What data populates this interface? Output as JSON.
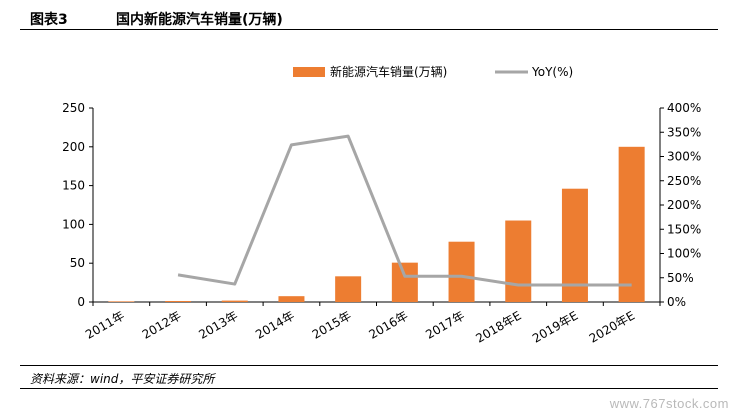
{
  "header": {
    "figure_number": "图表3",
    "title": "国内新能源汽车销量(万辆)"
  },
  "footer": {
    "source": "资料来源：wind，平安证券研究所",
    "watermark": "www.767stock.com"
  },
  "chart_data": {
    "type": "bar",
    "title": "",
    "categories": [
      "2011年",
      "2012年",
      "2013年",
      "2014年",
      "2015年",
      "2016年",
      "2017年",
      "2018年E",
      "2019年E",
      "2020年E"
    ],
    "series": [
      {
        "name": "新能源汽车销量(万辆)",
        "type": "bar",
        "axis": "left",
        "color": "#ED7D31",
        "values": [
          0.8,
          1.3,
          1.8,
          7.5,
          33.1,
          50.7,
          77.7,
          105,
          146,
          200
        ]
      },
      {
        "name": "YoY(%)",
        "type": "line",
        "axis": "right",
        "color": "#A6A6A6",
        "values": [
          null,
          56,
          37,
          324,
          342,
          53,
          53,
          35,
          35,
          35
        ]
      }
    ],
    "yleft": {
      "min": 0,
      "max": 250,
      "ticks": [
        0,
        50,
        100,
        150,
        200,
        250
      ]
    },
    "yright": {
      "min": 0,
      "max": 400,
      "ticks": [
        0,
        50,
        100,
        150,
        200,
        250,
        300,
        350,
        400
      ],
      "suffix": "%"
    },
    "grid": false,
    "legend_position": "top-center"
  }
}
